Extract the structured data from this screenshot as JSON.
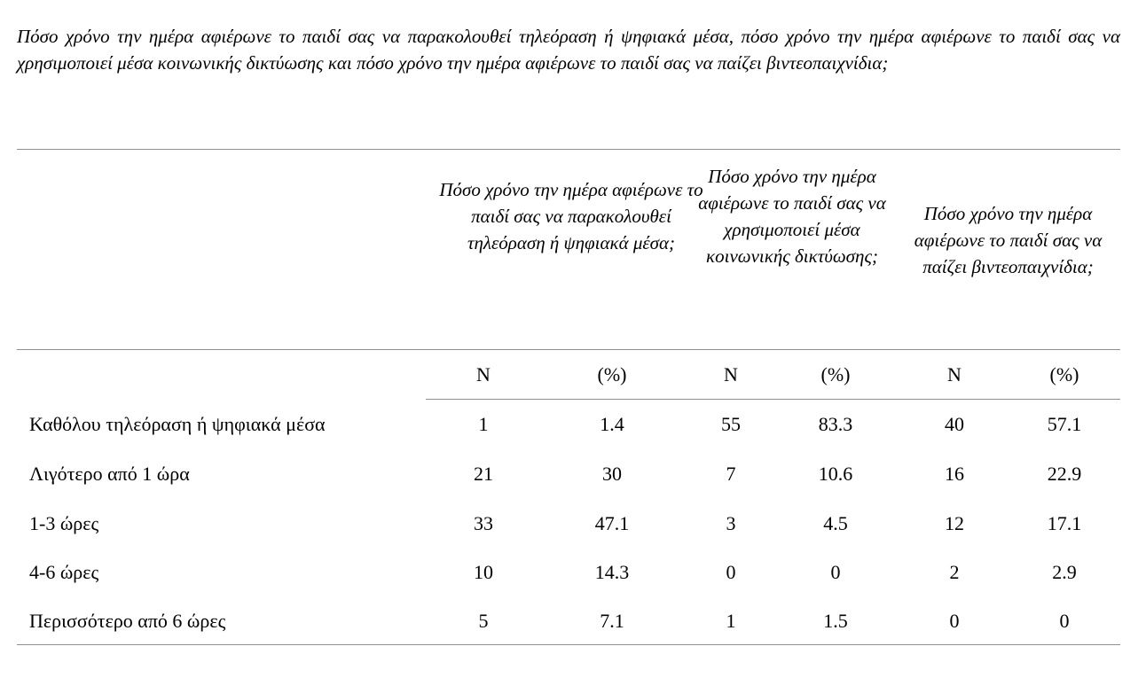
{
  "caption": "Πόσο χρόνο την ημέρα αφιέρωνε το παιδί σας να παρακολουθεί τηλεόραση ή ψηφιακά μέσα, πόσο χρόνο την ημέρα αφιέρωνε το παιδί σας να χρησιμοποιεί μέσα κοινωνικής δικτύωσης και πόσο χρόνο την ημέρα αφιέρωνε το παιδί σας να παίζει βιντεοπαιχνίδια;",
  "columns": [
    {
      "header": "Πόσο χρόνο την ημέρα αφιέρωνε το παιδί σας να παρακολουθεί τηλεόραση ή ψηφιακά μέσα;",
      "n_label": "N",
      "pct_label": "(%)"
    },
    {
      "header": "Πόσο χρόνο την ημέρα αφιέρωνε το παιδί σας να χρησιμοποιεί μέσα κοινωνικής δικτύωσης;",
      "n_label": "N",
      "pct_label": "(%)"
    },
    {
      "header": "Πόσο χρόνο την ημέρα αφιέρωνε το παιδί σας να παίζει βιντεοπαιχνίδια;",
      "n_label": "N",
      "pct_label": "(%)"
    }
  ],
  "rows": [
    {
      "label": "Καθόλου τηλεόραση ή ψηφιακά μέσα",
      "values": [
        "1",
        "1.4",
        "55",
        "83.3",
        "40",
        "57.1"
      ]
    },
    {
      "label": "Λιγότερο από 1 ώρα",
      "values": [
        "21",
        "30",
        "7",
        "10.6",
        "16",
        "22.9"
      ]
    },
    {
      "label": "1-3 ώρες",
      "values": [
        "33",
        "47.1",
        "3",
        "4.5",
        "12",
        "17.1"
      ]
    },
    {
      "label": "4-6 ώρες",
      "values": [
        "10",
        "14.3",
        "0",
        "0",
        "2",
        "2.9"
      ]
    },
    {
      "label": "Περισσότερο από 6 ώρες",
      "values": [
        "5",
        "7.1",
        "1",
        "1.5",
        "0",
        "0"
      ]
    }
  ]
}
